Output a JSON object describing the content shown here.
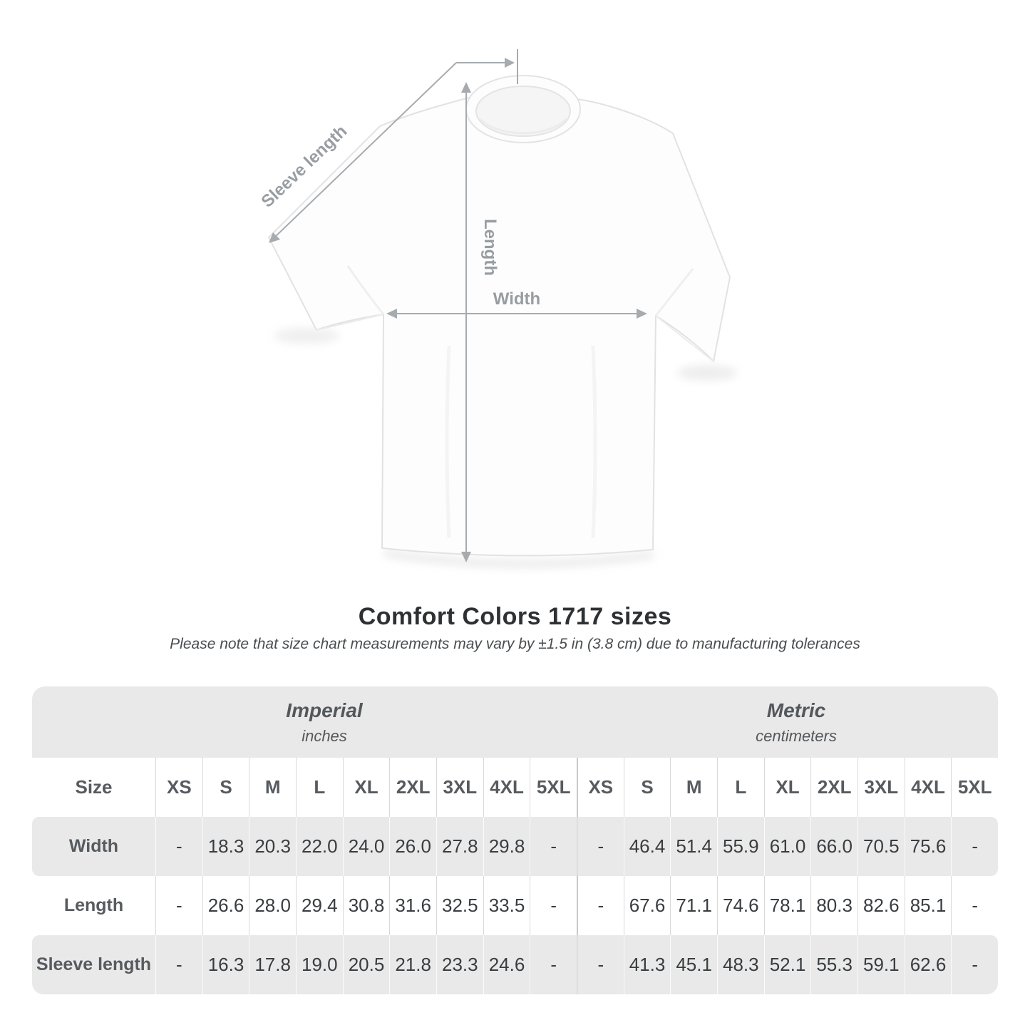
{
  "heading": {
    "title": "Comfort Colors 1717 sizes",
    "subtitle": "Please note that size chart measurements may vary by ±1.5 in (3.8 cm) due to manufacturing tolerances"
  },
  "diagram": {
    "labels": {
      "sleeve_length": "Sleeve length",
      "length": "Length",
      "width": "Width"
    }
  },
  "table": {
    "size_header": "Size",
    "sizes": [
      "XS",
      "S",
      "M",
      "L",
      "XL",
      "2XL",
      "3XL",
      "4XL",
      "5XL"
    ],
    "sections": [
      {
        "name": "Imperial",
        "unit": "inches"
      },
      {
        "name": "Metric",
        "unit": "centimeters"
      }
    ],
    "rows": [
      {
        "label": "Width",
        "imperial": [
          "-",
          "18.3",
          "20.3",
          "22.0",
          "24.0",
          "26.0",
          "27.8",
          "29.8",
          "-"
        ],
        "metric": [
          "-",
          "46.4",
          "51.4",
          "55.9",
          "61.0",
          "66.0",
          "70.5",
          "75.6",
          "-"
        ]
      },
      {
        "label": "Length",
        "imperial": [
          "-",
          "26.6",
          "28.0",
          "29.4",
          "30.8",
          "31.6",
          "32.5",
          "33.5",
          "-"
        ],
        "metric": [
          "-",
          "67.6",
          "71.1",
          "74.6",
          "78.1",
          "80.3",
          "82.6",
          "85.1",
          "-"
        ]
      },
      {
        "label": "Sleeve length",
        "imperial": [
          "-",
          "16.3",
          "17.8",
          "19.0",
          "20.5",
          "21.8",
          "23.3",
          "24.6",
          "-"
        ],
        "metric": [
          "-",
          "41.3",
          "45.1",
          "48.3",
          "52.1",
          "55.3",
          "59.1",
          "62.6",
          "-"
        ]
      }
    ]
  },
  "colors": {
    "band_gray": "#e9e9e9",
    "annotation_line": "#a6abaf",
    "annotation_text": "#989da2",
    "title_text": "#2e3133",
    "value_text": "#393d40"
  }
}
